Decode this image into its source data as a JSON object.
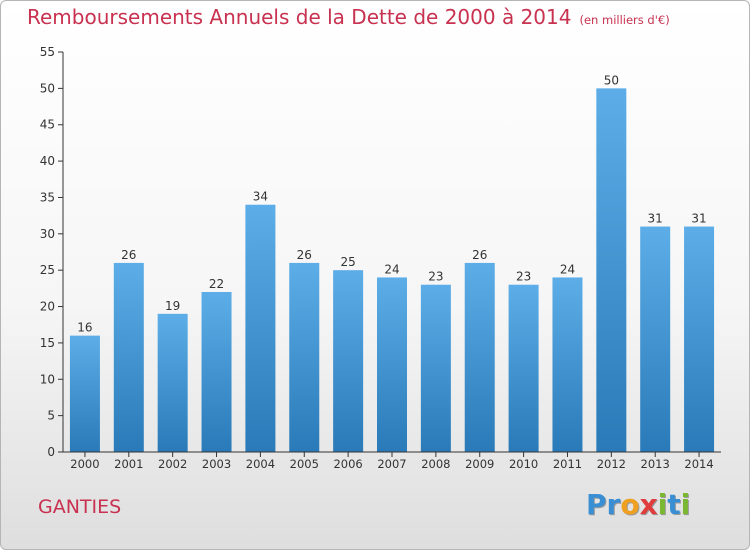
{
  "chart_data": {
    "type": "bar",
    "title": "Remboursements Annuels de la Dette de 2000 à 2014",
    "subtitle": "(en milliers d'€)",
    "categories": [
      "2000",
      "2001",
      "2002",
      "2003",
      "2004",
      "2005",
      "2006",
      "2007",
      "2008",
      "2009",
      "2010",
      "2011",
      "2012",
      "2013",
      "2014"
    ],
    "values": [
      16,
      26,
      19,
      22,
      34,
      26,
      25,
      24,
      23,
      26,
      23,
      24,
      50,
      31,
      31
    ],
    "ylim": [
      0,
      55
    ],
    "yticks": [
      0,
      5,
      10,
      15,
      20,
      25,
      30,
      35,
      40,
      45,
      50,
      55
    ],
    "grid": false,
    "bar_color_top": "#5dade8",
    "bar_color_bottom": "#2a7ab9",
    "show_data_labels": true
  },
  "footer": {
    "commune": "GANTIES",
    "brand_letters": [
      {
        "ch": "P",
        "color": "#3a8fd4"
      },
      {
        "ch": "r",
        "color": "#3a8fd4"
      },
      {
        "ch": "o",
        "color": "#f0a020"
      },
      {
        "ch": "x",
        "color": "#e03c3c"
      },
      {
        "ch": "i",
        "color": "#7ab832"
      },
      {
        "ch": "t",
        "color": "#3a8fd4"
      },
      {
        "ch": "i",
        "color": "#7ab832"
      }
    ]
  },
  "colors": {
    "title": "#c8314f",
    "axis": "#333333",
    "label": "#333333"
  }
}
